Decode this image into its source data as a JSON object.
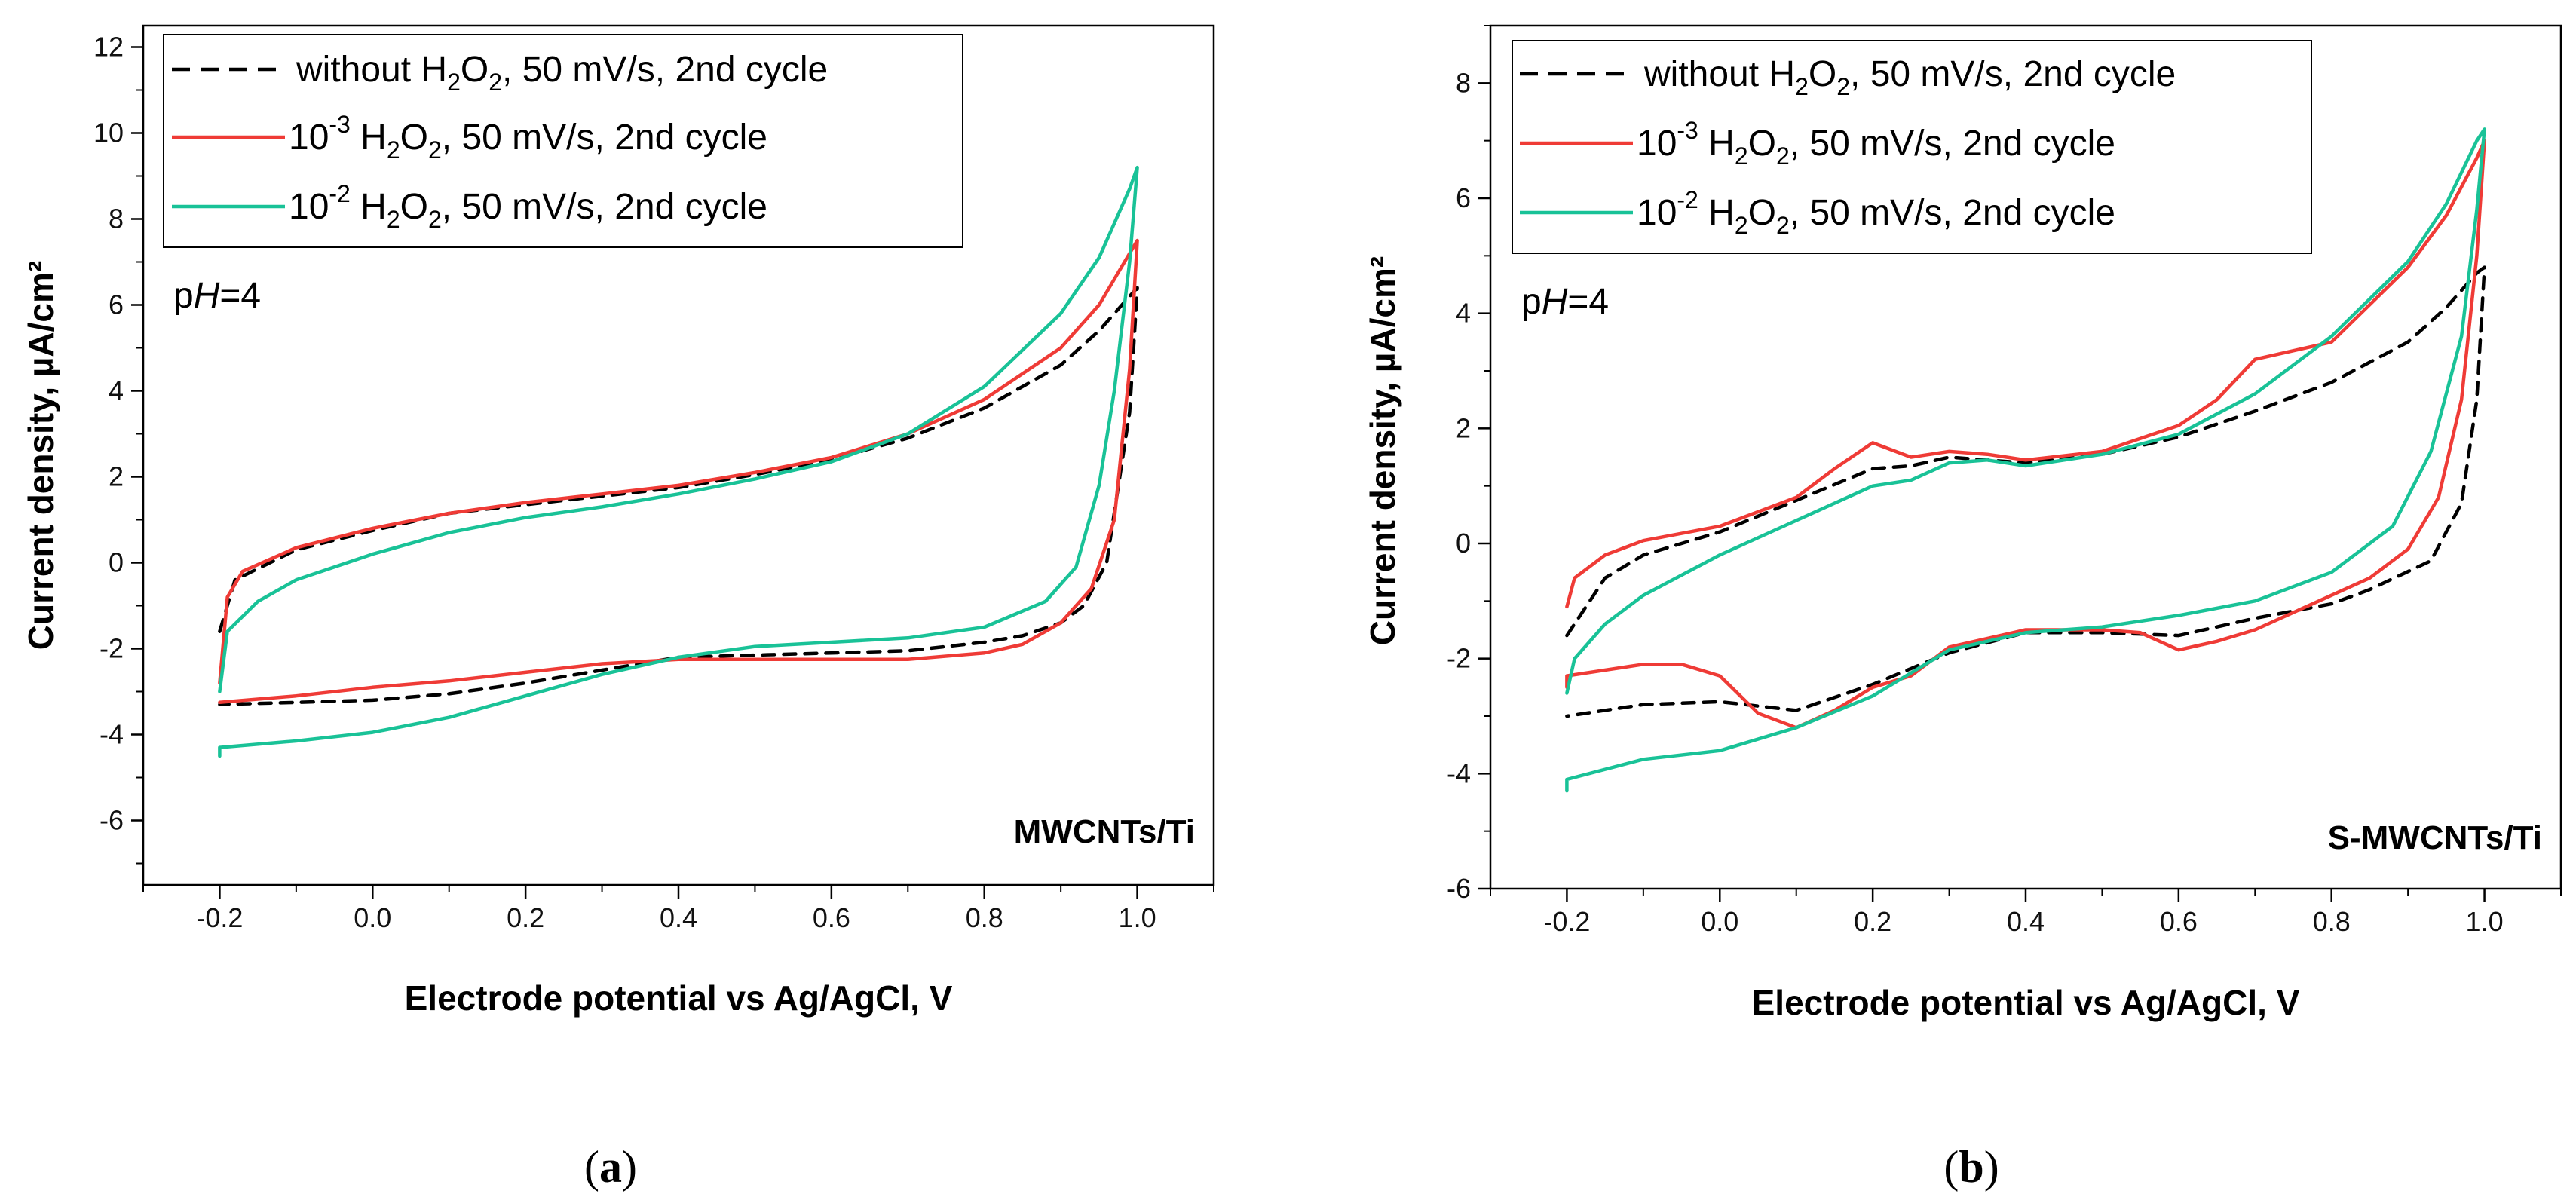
{
  "colors": {
    "series0": "#000000",
    "series1": "#ef3b36",
    "series2": "#19c297"
  },
  "chart_data": [
    {
      "type": "line",
      "panel_label": "a",
      "sample_label": "MWCNTs/Ti",
      "annotation": {
        "prefix": "p",
        "italic": "H",
        "suffix": "=4"
      },
      "xlabel": "Electrode potential vs Ag/AgCl, V",
      "ylabel": "Current density, µA/cm²",
      "xlim": [
        -0.3,
        1.1
      ],
      "ylim": [
        -7.5,
        12.5
      ],
      "xticks": [
        -0.2,
        0.0,
        0.2,
        0.4,
        0.6,
        0.8,
        1.0
      ],
      "xtick_labels": [
        "-0.2",
        "0.0",
        "0.2",
        "0.4",
        "0.6",
        "0.8",
        "1.0"
      ],
      "yticks": [
        -6,
        -4,
        -2,
        0,
        2,
        4,
        6,
        8,
        10,
        12
      ],
      "ytick_labels": [
        "-6",
        "-4",
        "-2",
        "0",
        "2",
        "4",
        "6",
        "8",
        "10",
        "12"
      ],
      "series": [
        {
          "name": "without H2O2, 50 mV/s, 2nd cycle",
          "legend": {
            "pre": "without H",
            "s1": "2",
            "mid": "O",
            "s2": "2",
            "post": ", 50 mV/s, 2nd cycle"
          },
          "style": "dashed",
          "color": "#000000",
          "points": [
            [
              -0.2,
              -1.6
            ],
            [
              -0.18,
              -0.4
            ],
            [
              -0.1,
              0.3
            ],
            [
              0.0,
              0.75
            ],
            [
              0.1,
              1.15
            ],
            [
              0.2,
              1.35
            ],
            [
              0.3,
              1.55
            ],
            [
              0.4,
              1.75
            ],
            [
              0.5,
              2.05
            ],
            [
              0.6,
              2.4
            ],
            [
              0.7,
              2.9
            ],
            [
              0.8,
              3.6
            ],
            [
              0.9,
              4.6
            ],
            [
              0.95,
              5.4
            ],
            [
              0.99,
              6.2
            ],
            [
              1.0,
              6.4
            ],
            [
              0.99,
              3.5
            ],
            [
              0.96,
              0.0
            ],
            [
              0.93,
              -1.0
            ],
            [
              0.9,
              -1.4
            ],
            [
              0.85,
              -1.7
            ],
            [
              0.8,
              -1.85
            ],
            [
              0.7,
              -2.05
            ],
            [
              0.6,
              -2.1
            ],
            [
              0.5,
              -2.15
            ],
            [
              0.4,
              -2.2
            ],
            [
              0.3,
              -2.5
            ],
            [
              0.2,
              -2.8
            ],
            [
              0.1,
              -3.05
            ],
            [
              0.0,
              -3.2
            ],
            [
              -0.1,
              -3.25
            ],
            [
              -0.2,
              -3.3
            ]
          ]
        },
        {
          "name": "10-3 H2O2, 50 mV/s, 2nd cycle",
          "legend": {
            "pre": "10",
            "sup": "-3",
            "mid1": " H",
            "s1": "2",
            "mid": "O",
            "s2": "2",
            "post": ", 50 mV/s, 2nd cycle"
          },
          "style": "solid",
          "color": "#ef3b36",
          "points": [
            [
              -0.2,
              -2.8
            ],
            [
              -0.19,
              -0.8
            ],
            [
              -0.17,
              -0.2
            ],
            [
              -0.1,
              0.35
            ],
            [
              0.0,
              0.8
            ],
            [
              0.1,
              1.15
            ],
            [
              0.2,
              1.4
            ],
            [
              0.3,
              1.6
            ],
            [
              0.4,
              1.8
            ],
            [
              0.5,
              2.1
            ],
            [
              0.6,
              2.45
            ],
            [
              0.7,
              3.0
            ],
            [
              0.8,
              3.8
            ],
            [
              0.9,
              5.0
            ],
            [
              0.95,
              6.0
            ],
            [
              0.99,
              7.2
            ],
            [
              1.0,
              7.5
            ],
            [
              0.99,
              4.5
            ],
            [
              0.97,
              1.0
            ],
            [
              0.94,
              -0.6
            ],
            [
              0.9,
              -1.4
            ],
            [
              0.85,
              -1.9
            ],
            [
              0.8,
              -2.1
            ],
            [
              0.7,
              -2.25
            ],
            [
              0.6,
              -2.25
            ],
            [
              0.5,
              -2.25
            ],
            [
              0.4,
              -2.25
            ],
            [
              0.3,
              -2.35
            ],
            [
              0.2,
              -2.55
            ],
            [
              0.1,
              -2.75
            ],
            [
              0.0,
              -2.9
            ],
            [
              -0.1,
              -3.1
            ],
            [
              -0.2,
              -3.25
            ]
          ]
        },
        {
          "name": "10-2 H2O2, 50 mV/s, 2nd cycle",
          "legend": {
            "pre": "10",
            "sup": "-2",
            "mid1": " H",
            "s1": "2",
            "mid": "O",
            "s2": "2",
            "post": ", 50 mV/s, 2nd cycle"
          },
          "style": "solid",
          "color": "#19c297",
          "points": [
            [
              -0.2,
              -3.0
            ],
            [
              -0.19,
              -1.6
            ],
            [
              -0.15,
              -0.9
            ],
            [
              -0.1,
              -0.4
            ],
            [
              0.0,
              0.2
            ],
            [
              0.1,
              0.7
            ],
            [
              0.2,
              1.05
            ],
            [
              0.3,
              1.3
            ],
            [
              0.4,
              1.6
            ],
            [
              0.5,
              1.95
            ],
            [
              0.6,
              2.35
            ],
            [
              0.7,
              3.0
            ],
            [
              0.8,
              4.1
            ],
            [
              0.9,
              5.8
            ],
            [
              0.95,
              7.1
            ],
            [
              0.99,
              8.7
            ],
            [
              1.0,
              9.2
            ],
            [
              0.99,
              7.0
            ],
            [
              0.97,
              4.0
            ],
            [
              0.95,
              1.8
            ],
            [
              0.92,
              -0.1
            ],
            [
              0.88,
              -0.9
            ],
            [
              0.8,
              -1.5
            ],
            [
              0.7,
              -1.75
            ],
            [
              0.6,
              -1.85
            ],
            [
              0.5,
              -1.95
            ],
            [
              0.4,
              -2.2
            ],
            [
              0.3,
              -2.6
            ],
            [
              0.2,
              -3.1
            ],
            [
              0.1,
              -3.6
            ],
            [
              0.0,
              -3.95
            ],
            [
              -0.1,
              -4.15
            ],
            [
              -0.2,
              -4.3
            ],
            [
              -0.2,
              -4.5
            ]
          ]
        }
      ]
    },
    {
      "type": "line",
      "panel_label": "b",
      "sample_label": "S-MWCNTs/Ti",
      "annotation": {
        "prefix": "p",
        "italic": "H",
        "suffix": "=4"
      },
      "xlabel": "Electrode potential vs Ag/AgCl, V",
      "ylabel": "Current density, µA/cm²",
      "xlim": [
        -0.3,
        1.1
      ],
      "ylim": [
        -6.0,
        9.0
      ],
      "xticks": [
        -0.2,
        0.0,
        0.2,
        0.4,
        0.6,
        0.8,
        1.0
      ],
      "xtick_labels": [
        "-0.2",
        "0.0",
        "0.2",
        "0.4",
        "0.6",
        "0.8",
        "1.0"
      ],
      "yticks": [
        -6,
        -4,
        -2,
        0,
        2,
        4,
        6,
        8
      ],
      "ytick_labels": [
        "-6",
        "-4",
        "-2",
        "0",
        "2",
        "4",
        "6",
        "8"
      ],
      "series": [
        {
          "name": "without H2O2, 50 mV/s, 2nd cycle",
          "legend": {
            "pre": "without H",
            "s1": "2",
            "mid": "O",
            "s2": "2",
            "post": ", 50 mV/s, 2nd cycle"
          },
          "style": "dashed",
          "color": "#000000",
          "points": [
            [
              -0.2,
              -1.6
            ],
            [
              -0.15,
              -0.6
            ],
            [
              -0.1,
              -0.2
            ],
            [
              0.0,
              0.2
            ],
            [
              0.1,
              0.75
            ],
            [
              0.2,
              1.3
            ],
            [
              0.25,
              1.35
            ],
            [
              0.3,
              1.5
            ],
            [
              0.35,
              1.45
            ],
            [
              0.4,
              1.4
            ],
            [
              0.5,
              1.55
            ],
            [
              0.6,
              1.85
            ],
            [
              0.7,
              2.3
            ],
            [
              0.8,
              2.8
            ],
            [
              0.9,
              3.5
            ],
            [
              0.95,
              4.1
            ],
            [
              0.99,
              4.7
            ],
            [
              1.0,
              4.8
            ],
            [
              0.99,
              2.5
            ],
            [
              0.97,
              0.7
            ],
            [
              0.93,
              -0.3
            ],
            [
              0.85,
              -0.8
            ],
            [
              0.8,
              -1.05
            ],
            [
              0.7,
              -1.3
            ],
            [
              0.6,
              -1.6
            ],
            [
              0.5,
              -1.55
            ],
            [
              0.4,
              -1.55
            ],
            [
              0.3,
              -1.9
            ],
            [
              0.2,
              -2.45
            ],
            [
              0.1,
              -2.9
            ],
            [
              0.0,
              -2.75
            ],
            [
              -0.1,
              -2.8
            ],
            [
              -0.2,
              -3.0
            ]
          ]
        },
        {
          "name": "10-3 H2O2, 50 mV/s, 2nd cycle",
          "legend": {
            "pre": "10",
            "sup": "-3",
            "mid1": " H",
            "s1": "2",
            "mid": "O",
            "s2": "2",
            "post": ", 50 mV/s, 2nd cycle"
          },
          "style": "solid",
          "color": "#ef3b36",
          "points": [
            [
              -0.2,
              -1.1
            ],
            [
              -0.19,
              -0.6
            ],
            [
              -0.15,
              -0.2
            ],
            [
              -0.1,
              0.05
            ],
            [
              0.0,
              0.3
            ],
            [
              0.1,
              0.8
            ],
            [
              0.15,
              1.3
            ],
            [
              0.2,
              1.75
            ],
            [
              0.25,
              1.5
            ],
            [
              0.3,
              1.6
            ],
            [
              0.35,
              1.55
            ],
            [
              0.4,
              1.45
            ],
            [
              0.5,
              1.6
            ],
            [
              0.6,
              2.05
            ],
            [
              0.65,
              2.5
            ],
            [
              0.7,
              3.2
            ],
            [
              0.8,
              3.5
            ],
            [
              0.9,
              4.8
            ],
            [
              0.95,
              5.7
            ],
            [
              0.99,
              6.7
            ],
            [
              1.0,
              7.0
            ],
            [
              0.99,
              5.0
            ],
            [
              0.97,
              2.5
            ],
            [
              0.94,
              0.8
            ],
            [
              0.9,
              -0.1
            ],
            [
              0.85,
              -0.6
            ],
            [
              0.8,
              -0.9
            ],
            [
              0.7,
              -1.5
            ],
            [
              0.65,
              -1.7
            ],
            [
              0.6,
              -1.85
            ],
            [
              0.55,
              -1.55
            ],
            [
              0.5,
              -1.5
            ],
            [
              0.4,
              -1.5
            ],
            [
              0.3,
              -1.8
            ],
            [
              0.25,
              -2.3
            ],
            [
              0.2,
              -2.5
            ],
            [
              0.15,
              -2.9
            ],
            [
              0.1,
              -3.2
            ],
            [
              0.05,
              -2.95
            ],
            [
              0.0,
              -2.3
            ],
            [
              -0.05,
              -2.1
            ],
            [
              -0.1,
              -2.1
            ],
            [
              -0.2,
              -2.3
            ],
            [
              -0.2,
              -2.5
            ]
          ]
        },
        {
          "name": "10-2 H2O2, 50 mV/s, 2nd cycle",
          "legend": {
            "pre": "10",
            "sup": "-2",
            "mid1": " H",
            "s1": "2",
            "mid": "O",
            "s2": "2",
            "post": ", 50 mV/s, 2nd cycle"
          },
          "style": "solid",
          "color": "#19c297",
          "points": [
            [
              -0.2,
              -2.6
            ],
            [
              -0.19,
              -2.0
            ],
            [
              -0.15,
              -1.4
            ],
            [
              -0.1,
              -0.9
            ],
            [
              0.0,
              -0.2
            ],
            [
              0.1,
              0.4
            ],
            [
              0.2,
              1.0
            ],
            [
              0.25,
              1.1
            ],
            [
              0.3,
              1.4
            ],
            [
              0.35,
              1.45
            ],
            [
              0.4,
              1.35
            ],
            [
              0.5,
              1.55
            ],
            [
              0.6,
              1.9
            ],
            [
              0.7,
              2.6
            ],
            [
              0.8,
              3.6
            ],
            [
              0.9,
              4.9
            ],
            [
              0.95,
              5.9
            ],
            [
              0.99,
              7.0
            ],
            [
              1.0,
              7.2
            ],
            [
              0.99,
              5.8
            ],
            [
              0.97,
              3.6
            ],
            [
              0.93,
              1.6
            ],
            [
              0.88,
              0.3
            ],
            [
              0.8,
              -0.5
            ],
            [
              0.7,
              -1.0
            ],
            [
              0.6,
              -1.25
            ],
            [
              0.5,
              -1.45
            ],
            [
              0.4,
              -1.55
            ],
            [
              0.3,
              -1.85
            ],
            [
              0.2,
              -2.65
            ],
            [
              0.1,
              -3.2
            ],
            [
              0.0,
              -3.6
            ],
            [
              -0.1,
              -3.75
            ],
            [
              -0.2,
              -4.1
            ],
            [
              -0.2,
              -4.3
            ]
          ]
        }
      ]
    }
  ]
}
